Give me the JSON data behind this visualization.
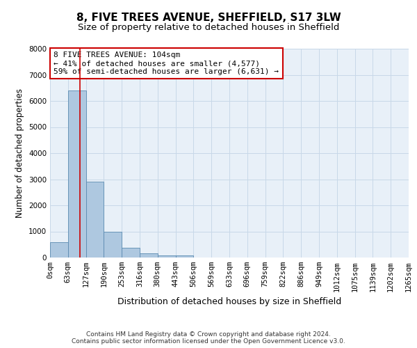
{
  "title1": "8, FIVE TREES AVENUE, SHEFFIELD, S17 3LW",
  "title2": "Size of property relative to detached houses in Sheffield",
  "xlabel": "Distribution of detached houses by size in Sheffield",
  "ylabel": "Number of detached properties",
  "bar_values": [
    600,
    6400,
    2900,
    980,
    370,
    160,
    90,
    80,
    0,
    0,
    0,
    0,
    0,
    0,
    0,
    0,
    0,
    0,
    0,
    0
  ],
  "bin_labels": [
    "0sqm",
    "63sqm",
    "127sqm",
    "190sqm",
    "253sqm",
    "316sqm",
    "380sqm",
    "443sqm",
    "506sqm",
    "569sqm",
    "633sqm",
    "696sqm",
    "759sqm",
    "822sqm",
    "886sqm",
    "949sqm",
    "1012sqm",
    "1075sqm",
    "1139sqm",
    "1202sqm",
    "1265sqm"
  ],
  "bar_color": "#aec8e0",
  "bar_edge_color": "#5a8ab0",
  "vline_x": 1.65,
  "vline_color": "#cc0000",
  "annotation_text": "8 FIVE TREES AVENUE: 104sqm\n← 41% of detached houses are smaller (4,577)\n59% of semi-detached houses are larger (6,631) →",
  "annotation_box_color": "#ffffff",
  "annotation_box_edge": "#cc0000",
  "ylim": [
    0,
    8000
  ],
  "yticks": [
    0,
    1000,
    2000,
    3000,
    4000,
    5000,
    6000,
    7000,
    8000
  ],
  "grid_color": "#c8d8e8",
  "bg_color": "#e8f0f8",
  "footer1": "Contains HM Land Registry data © Crown copyright and database right 2024.",
  "footer2": "Contains public sector information licensed under the Open Government Licence v3.0.",
  "title1_fontsize": 11,
  "title2_fontsize": 9.5,
  "xlabel_fontsize": 9,
  "ylabel_fontsize": 8.5,
  "tick_fontsize": 7.5,
  "annotation_fontsize": 8,
  "footer_fontsize": 6.5
}
